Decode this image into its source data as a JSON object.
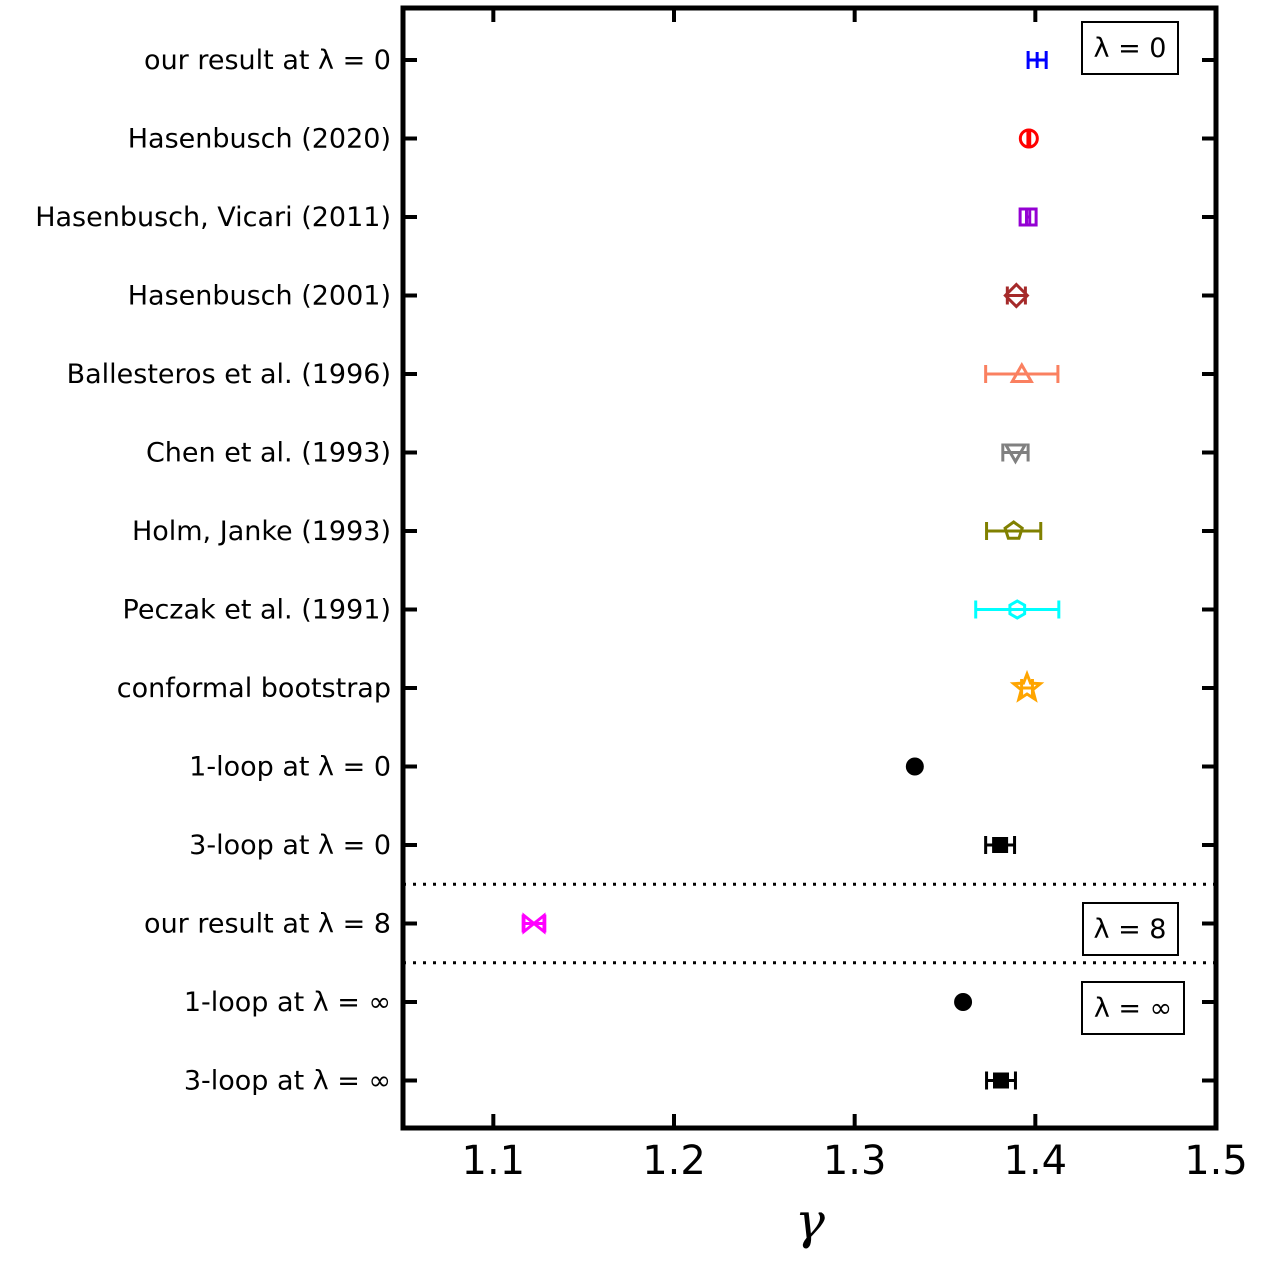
{
  "chart_data": {
    "type": "scatter",
    "title": "",
    "xlabel": "γ",
    "ylabel": "",
    "xlim": [
      1.05,
      1.5
    ],
    "xticks": [
      1.1,
      1.2,
      1.3,
      1.4,
      1.5
    ],
    "xtick_labels": [
      "1.1",
      "1.2",
      "1.3",
      "1.4",
      "1.5"
    ],
    "grid": false,
    "points": [
      {
        "label": "our result at λ = 0",
        "value": 1.401,
        "err": 0.005,
        "color": "#0000ff",
        "marker": "plus"
      },
      {
        "label": "Hasenbusch (2020)",
        "value": 1.3964,
        "err": 0.0005,
        "color": "#ff0000",
        "marker": "circle"
      },
      {
        "label": "Hasenbusch, Vicari (2011)",
        "value": 1.396,
        "err": 0.0009,
        "color": "#9400d3",
        "marker": "square"
      },
      {
        "label": "Hasenbusch (2001)",
        "value": 1.3895,
        "err": 0.005,
        "color": "#a52a2a",
        "marker": "diamond"
      },
      {
        "label": "Ballesteros et al. (1996)",
        "value": 1.3925,
        "err": 0.02,
        "color": "#fa8060",
        "marker": "triangle-up"
      },
      {
        "label": "Chen et al. (1993)",
        "value": 1.389,
        "err": 0.007,
        "color": "#808080",
        "marker": "triangle-down"
      },
      {
        "label": "Holm, Janke (1993)",
        "value": 1.388,
        "err": 0.015,
        "color": "#808000",
        "marker": "pentagon"
      },
      {
        "label": "Peczak et al. (1991)",
        "value": 1.39,
        "err": 0.023,
        "color": "#00ffff",
        "marker": "hexagon"
      },
      {
        "label": "conformal bootstrap",
        "value": 1.3954,
        "err": 0.003,
        "color": "#ffa500",
        "marker": "star"
      },
      {
        "label": "1-loop at λ = 0",
        "value": 1.3333,
        "err": 0.0,
        "color": "#000000",
        "marker": "dot"
      },
      {
        "label": "3-loop at λ = 0",
        "value": 1.3805,
        "err": 0.008,
        "color": "#000000",
        "marker": "square-filled"
      },
      {
        "label": "our result at λ = 8",
        "value": 1.1225,
        "err": 0.006,
        "color": "#ff00ff",
        "marker": "bowtie"
      },
      {
        "label": "1-loop at λ = ∞",
        "value": 1.36,
        "err": 0.0,
        "color": "#000000",
        "marker": "dot"
      },
      {
        "label": "3-loop at λ = ∞",
        "value": 1.381,
        "err": 0.008,
        "color": "#000000",
        "marker": "square-filled"
      }
    ],
    "separators_after_rows": [
      10.5,
      11.5
    ],
    "region_labels": [
      "λ = 0",
      "λ = 8",
      "λ = ∞"
    ]
  }
}
